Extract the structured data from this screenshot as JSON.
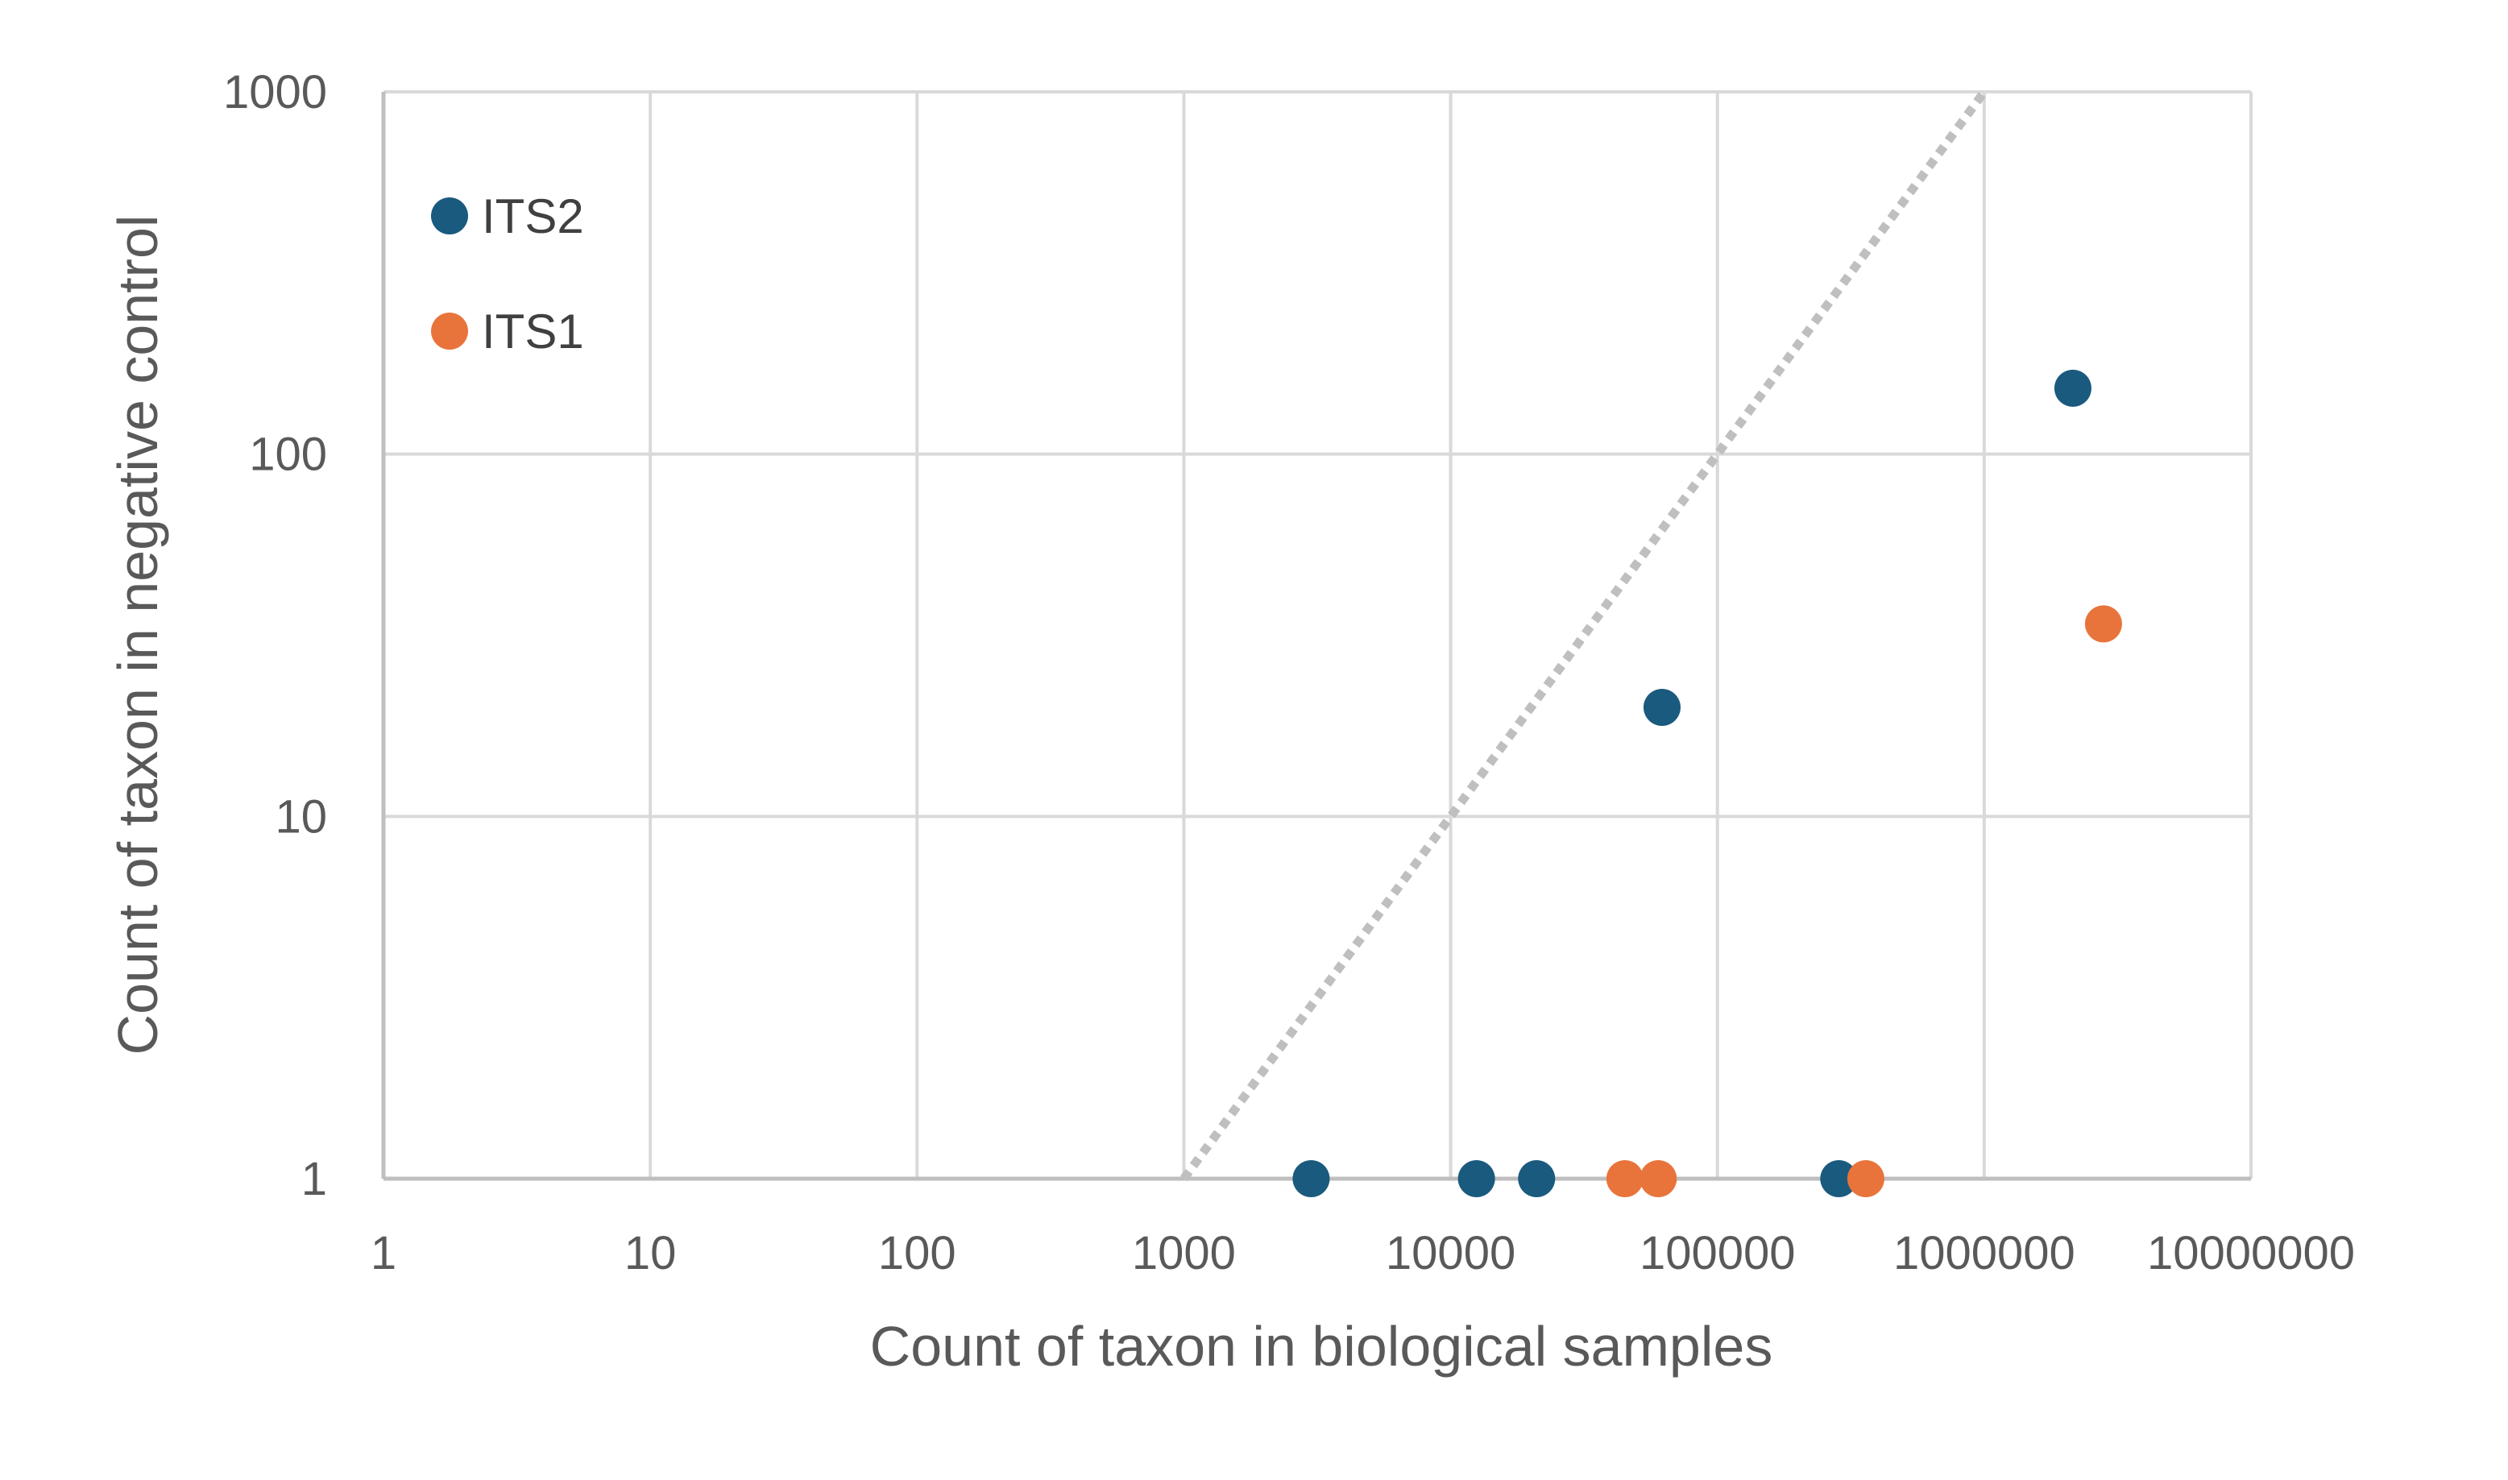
{
  "chart_data": {
    "type": "scatter",
    "title": "",
    "xlabel": "Count of taxon in biological samples",
    "ylabel": "Count of taxon in negative control",
    "x_scale": "log10",
    "y_scale": "log10",
    "xlim": [
      1,
      10000000
    ],
    "ylim": [
      1,
      1000
    ],
    "x_ticks": [
      1,
      10,
      100,
      1000,
      10000,
      100000,
      1000000,
      10000000
    ],
    "x_tick_labels": [
      "1",
      "10",
      "100",
      "1000",
      "10000",
      "100000",
      "1000000",
      "10000000"
    ],
    "y_ticks": [
      1,
      10,
      100,
      1000
    ],
    "y_tick_labels": [
      "1",
      "10",
      "100",
      "1000"
    ],
    "grid": true,
    "legend_position": "top-left",
    "series": [
      {
        "name": "ITS2",
        "color": "#1a5a7e",
        "points": [
          {
            "x": 3000,
            "y": 1
          },
          {
            "x": 12500,
            "y": 1
          },
          {
            "x": 21000,
            "y": 1
          },
          {
            "x": 62000,
            "y": 20
          },
          {
            "x": 285000,
            "y": 1
          },
          {
            "x": 2150000,
            "y": 152
          }
        ]
      },
      {
        "name": "ITS1",
        "color": "#e8743b",
        "points": [
          {
            "x": 45000,
            "y": 1
          },
          {
            "x": 60000,
            "y": 1
          },
          {
            "x": 360000,
            "y": 1
          },
          {
            "x": 2800000,
            "y": 34
          }
        ]
      }
    ],
    "reference_line": {
      "style": "dotted",
      "color": "#bfbfbf",
      "from": {
        "x": 1000,
        "y": 1
      },
      "to": {
        "x": 1000000,
        "y": 1000
      }
    }
  }
}
